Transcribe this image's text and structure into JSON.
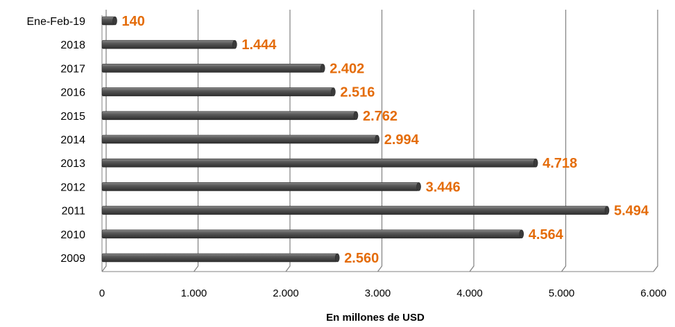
{
  "chart_data": {
    "type": "bar",
    "orientation": "horizontal",
    "categories": [
      "Ene-Feb-19",
      "2018",
      "2017",
      "2016",
      "2015",
      "2014",
      "2013",
      "2012",
      "2011",
      "2010",
      "2009"
    ],
    "values": [
      140,
      1444,
      2402,
      2516,
      2762,
      2994,
      4718,
      3446,
      5494,
      4564,
      2560
    ],
    "data_labels": [
      "140",
      "1.444",
      "2.402",
      "2.516",
      "2.762",
      "2.994",
      "4.718",
      "3.446",
      "5.494",
      "4.564",
      "2.560"
    ],
    "title": "",
    "xlabel": "En millones de USD",
    "ylabel": "",
    "xlim": [
      0,
      6000
    ],
    "x_ticks": [
      0,
      1000,
      2000,
      3000,
      4000,
      5000,
      6000
    ],
    "x_tick_labels": [
      "0",
      "1.000",
      "2.000",
      "3.000",
      "4.000",
      "5.000",
      "6.000"
    ],
    "grid": true,
    "legend": "none",
    "colors": {
      "bar": "#4a4a4a",
      "bar_highlight": "#8a8a8a",
      "data_label": "#e46c0a",
      "grid": "#808080"
    }
  }
}
